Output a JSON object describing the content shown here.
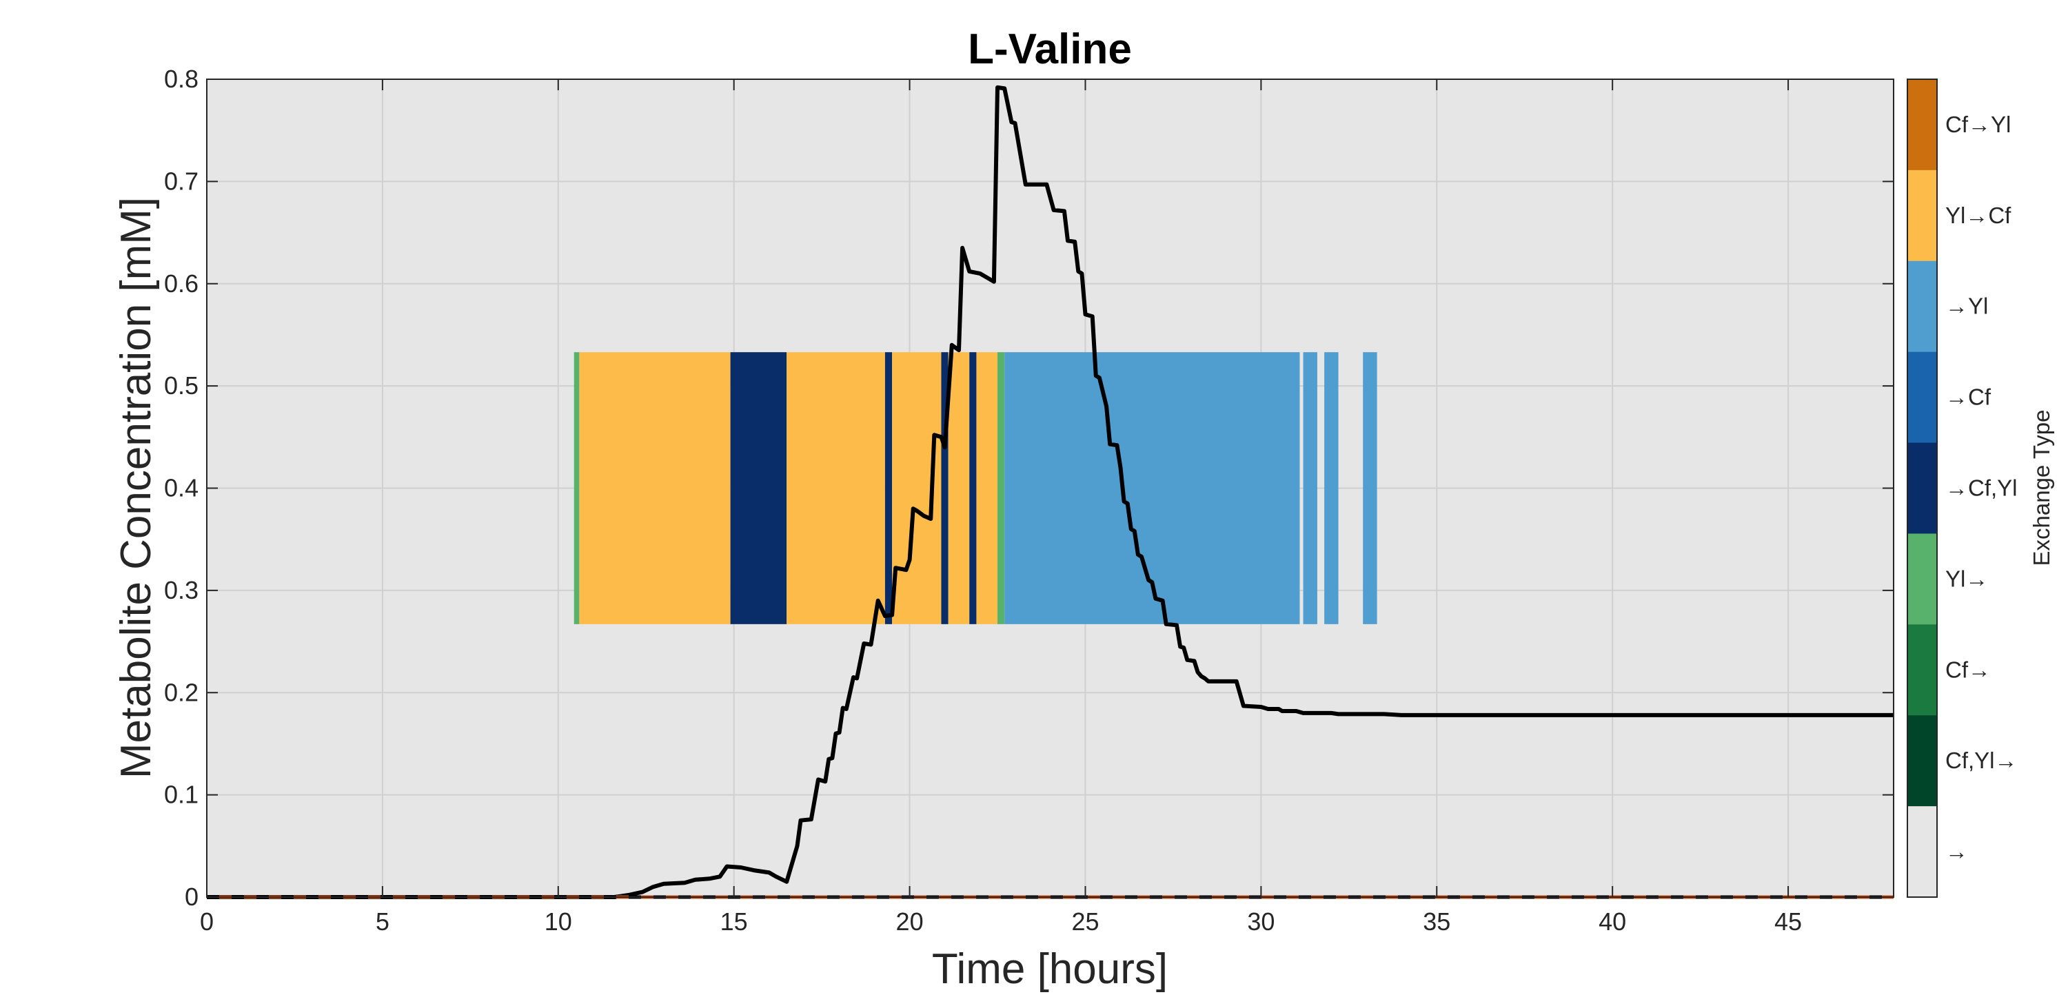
{
  "chart_data": {
    "type": "line",
    "title": "L-Valine",
    "xlabel": "Time [hours]",
    "ylabel": "Metabolite Concentration [mM]",
    "xlim": [
      0,
      48
    ],
    "ylim": [
      0,
      0.8
    ],
    "xticks": [
      0,
      5,
      10,
      15,
      20,
      25,
      30,
      35,
      40,
      45
    ],
    "yticks": [
      0,
      0.1,
      0.2,
      0.3,
      0.4,
      0.5,
      0.6,
      0.7,
      0.8
    ],
    "grid": true,
    "background": "#e6e6e6",
    "series": [
      {
        "style": "solid",
        "color": "#000000",
        "points": [
          [
            0,
            0
          ],
          [
            11.6,
            0
          ],
          [
            12.0,
            0.002
          ],
          [
            12.4,
            0.005
          ],
          [
            12.7,
            0.01
          ],
          [
            13.0,
            0.013
          ],
          [
            13.6,
            0.014
          ],
          [
            13.9,
            0.017
          ],
          [
            14.3,
            0.018
          ],
          [
            14.6,
            0.02
          ],
          [
            14.8,
            0.03
          ],
          [
            15.2,
            0.029
          ],
          [
            15.6,
            0.026
          ],
          [
            16.0,
            0.024
          ],
          [
            16.2,
            0.02
          ],
          [
            16.5,
            0.015
          ],
          [
            16.8,
            0.05
          ],
          [
            16.9,
            0.075
          ],
          [
            17.2,
            0.076
          ],
          [
            17.4,
            0.115
          ],
          [
            17.6,
            0.113
          ],
          [
            17.7,
            0.135
          ],
          [
            17.8,
            0.136
          ],
          [
            17.9,
            0.16
          ],
          [
            18.0,
            0.161
          ],
          [
            18.1,
            0.185
          ],
          [
            18.2,
            0.184
          ],
          [
            18.4,
            0.215
          ],
          [
            18.5,
            0.214
          ],
          [
            18.7,
            0.248
          ],
          [
            18.9,
            0.247
          ],
          [
            19.1,
            0.29
          ],
          [
            19.3,
            0.275
          ],
          [
            19.5,
            0.276
          ],
          [
            19.6,
            0.322
          ],
          [
            19.9,
            0.32
          ],
          [
            20.0,
            0.33
          ],
          [
            20.1,
            0.38
          ],
          [
            20.2,
            0.378
          ],
          [
            20.4,
            0.373
          ],
          [
            20.6,
            0.37
          ],
          [
            20.7,
            0.452
          ],
          [
            20.9,
            0.45
          ],
          [
            21.0,
            0.44
          ],
          [
            21.2,
            0.54
          ],
          [
            21.4,
            0.535
          ],
          [
            21.5,
            0.635
          ],
          [
            21.7,
            0.612
          ],
          [
            22.0,
            0.61
          ],
          [
            22.2,
            0.606
          ],
          [
            22.4,
            0.602
          ],
          [
            22.5,
            0.792
          ],
          [
            22.7,
            0.791
          ],
          [
            22.9,
            0.758
          ],
          [
            23.0,
            0.757
          ],
          [
            23.3,
            0.697
          ],
          [
            23.9,
            0.697
          ],
          [
            24.1,
            0.672
          ],
          [
            24.4,
            0.671
          ],
          [
            24.5,
            0.642
          ],
          [
            24.7,
            0.641
          ],
          [
            24.8,
            0.612
          ],
          [
            24.9,
            0.61
          ],
          [
            25.0,
            0.57
          ],
          [
            25.2,
            0.568
          ],
          [
            25.3,
            0.51
          ],
          [
            25.4,
            0.508
          ],
          [
            25.6,
            0.48
          ],
          [
            25.7,
            0.443
          ],
          [
            25.9,
            0.442
          ],
          [
            26.0,
            0.42
          ],
          [
            26.1,
            0.387
          ],
          [
            26.2,
            0.385
          ],
          [
            26.3,
            0.36
          ],
          [
            26.4,
            0.358
          ],
          [
            26.5,
            0.335
          ],
          [
            26.6,
            0.333
          ],
          [
            26.8,
            0.31
          ],
          [
            26.9,
            0.308
          ],
          [
            27.0,
            0.292
          ],
          [
            27.2,
            0.29
          ],
          [
            27.3,
            0.267
          ],
          [
            27.6,
            0.266
          ],
          [
            27.7,
            0.245
          ],
          [
            27.8,
            0.244
          ],
          [
            27.9,
            0.232
          ],
          [
            28.1,
            0.231
          ],
          [
            28.2,
            0.22
          ],
          [
            28.3,
            0.216
          ],
          [
            28.4,
            0.214
          ],
          [
            28.5,
            0.211
          ],
          [
            29.3,
            0.211
          ],
          [
            29.5,
            0.187
          ],
          [
            30.0,
            0.186
          ],
          [
            30.2,
            0.184
          ],
          [
            30.5,
            0.184
          ],
          [
            30.6,
            0.182
          ],
          [
            31.0,
            0.182
          ],
          [
            31.2,
            0.18
          ],
          [
            32.0,
            0.18
          ],
          [
            32.2,
            0.179
          ],
          [
            33.5,
            0.179
          ],
          [
            34.0,
            0.178
          ],
          [
            48,
            0.178
          ]
        ]
      },
      {
        "style": "dashed",
        "colors": [
          "#000000",
          "#c94b0c"
        ],
        "points": [
          [
            0,
            0
          ],
          [
            48,
            0
          ]
        ]
      }
    ],
    "exchange_band": {
      "y_range": [
        0.267,
        0.533
      ],
      "segments": [
        {
          "x0": 10.45,
          "x1": 10.6,
          "type": "Yl→"
        },
        {
          "x0": 10.6,
          "x1": 14.9,
          "type": "Yl→Cf"
        },
        {
          "x0": 14.9,
          "x1": 16.5,
          "type": "→Cf,Yl"
        },
        {
          "x0": 16.5,
          "x1": 19.3,
          "type": "Yl→Cf"
        },
        {
          "x0": 19.3,
          "x1": 19.5,
          "type": "→Cf,Yl"
        },
        {
          "x0": 19.5,
          "x1": 20.9,
          "type": "Yl→Cf"
        },
        {
          "x0": 20.9,
          "x1": 21.1,
          "type": "→Cf,Yl"
        },
        {
          "x0": 21.1,
          "x1": 21.7,
          "type": "Yl→Cf"
        },
        {
          "x0": 21.7,
          "x1": 21.9,
          "type": "→Cf,Yl"
        },
        {
          "x0": 21.9,
          "x1": 22.5,
          "type": "Yl→Cf"
        },
        {
          "x0": 22.5,
          "x1": 22.7,
          "type": "Yl→"
        },
        {
          "x0": 22.7,
          "x1": 31.1,
          "type": "→Yl"
        },
        {
          "x0": 31.2,
          "x1": 31.6,
          "type": "→Yl"
        },
        {
          "x0": 31.8,
          "x1": 32.2,
          "type": "→Yl"
        },
        {
          "x0": 32.9,
          "x1": 33.3,
          "type": "→Yl"
        }
      ]
    },
    "colorbar": {
      "title": "Exchange Type",
      "entries": [
        {
          "label": "Cf→Yl",
          "color": "#cc700f"
        },
        {
          "label": "Yl→Cf",
          "color": "#fdbb4a"
        },
        {
          "label": "→Yl",
          "color": "#509dcf"
        },
        {
          "label": "→Cf",
          "color": "#1a63ad"
        },
        {
          "label": "→Cf,Yl",
          "color": "#082d69"
        },
        {
          "label": "Yl→",
          "color": "#58b26b"
        },
        {
          "label": "Cf→",
          "color": "#1a7a3f"
        },
        {
          "label": "Cf,Yl→",
          "color": "#00442a"
        },
        {
          "label": "→",
          "color": "#e6e6e6"
        }
      ]
    }
  }
}
